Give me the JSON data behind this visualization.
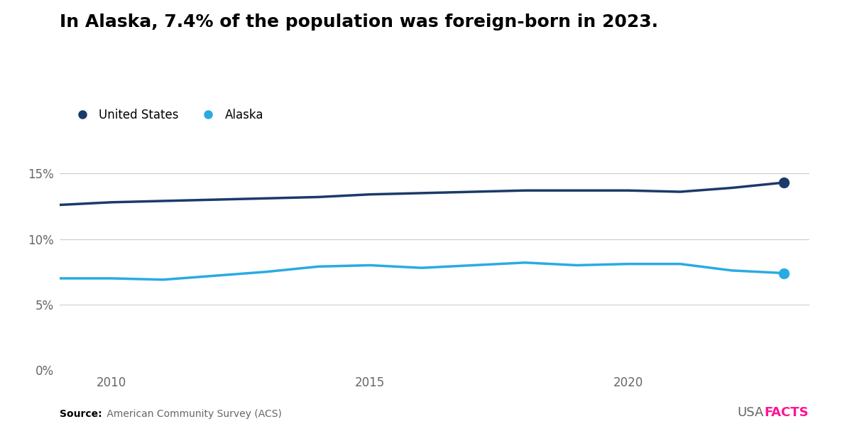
{
  "title": "In Alaska, 7.4% of the population was foreign-born in 2023.",
  "years": [
    2009,
    2010,
    2011,
    2012,
    2013,
    2014,
    2015,
    2016,
    2017,
    2018,
    2019,
    2020,
    2021,
    2022,
    2023
  ],
  "alaska": [
    7.0,
    7.0,
    6.9,
    7.2,
    7.5,
    7.9,
    8.0,
    7.8,
    8.0,
    8.2,
    8.0,
    8.1,
    8.1,
    7.6,
    7.4
  ],
  "us": [
    12.6,
    12.8,
    12.9,
    13.0,
    13.1,
    13.2,
    13.4,
    13.5,
    13.6,
    13.7,
    13.7,
    13.7,
    13.6,
    13.9,
    14.3
  ],
  "alaska_color": "#29ABE2",
  "us_color": "#1B3A6B",
  "background_color": "#FFFFFF",
  "grid_color": "#CCCCCC",
  "yticks": [
    0,
    5,
    10,
    15
  ],
  "ytick_labels": [
    "0%",
    "5%",
    "10%",
    "15%"
  ],
  "xticks": [
    2010,
    2015,
    2020
  ],
  "ylim": [
    0,
    17
  ],
  "xlim": [
    2009,
    2023.5
  ],
  "title_fontsize": 18,
  "legend_fontsize": 12,
  "source_bold": "Source:",
  "source_normal": " American Community Survey (ACS)",
  "usafacts_usa": "USA",
  "usafacts_facts": "FACTS",
  "usafacts_color_usa": "#666666",
  "usafacts_color_facts": "#FF1493",
  "line_width": 2.5,
  "marker_size": 10,
  "legend_us_label": "United States",
  "legend_alaska_label": "Alaska"
}
